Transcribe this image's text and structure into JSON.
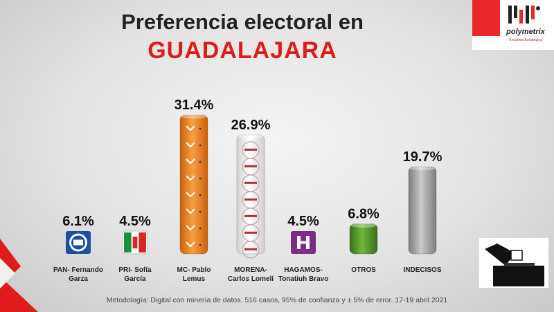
{
  "title": "Preferencia electoral en",
  "subtitle": "GUADALAJARA",
  "logo": {
    "brand": "polymetrix",
    "tagline": "Encuesta Estratégica"
  },
  "methodology": "Metodología: Digital con minería de datos. 516 casos, 95% de confianza y ± 5% de error. 17-19 abril 2021",
  "colors": {
    "accent_red": "#e01b1b",
    "mc_orange": "#f28a1c",
    "morena_white": "#f2f2f2",
    "hagamos_purple": "#7b2d86",
    "otros_green": "#4f8f26",
    "indecisos_gray": "#a7a7a7"
  },
  "chart_data": {
    "type": "bar",
    "categories": [
      [
        "PAN- Fernando",
        "Garza"
      ],
      [
        "PRI- Sofía",
        "García"
      ],
      [
        "MC- Pablo",
        "Lemus"
      ],
      [
        "MORENA-",
        "Carlos Lomelí"
      ],
      [
        "HAGAMOS-",
        "Tonatiuh Bravo"
      ],
      [
        "OTROS"
      ],
      [
        "INDECISOS"
      ]
    ],
    "values": [
      6.1,
      4.5,
      31.4,
      26.9,
      4.5,
      6.8,
      19.7
    ],
    "value_labels": [
      "6.1%",
      "4.5%",
      "31.4%",
      "26.9%",
      "4.5%",
      "6.8%",
      "19.7%"
    ],
    "styles": [
      "pan-logo",
      "pri-logo",
      "mc-orange-cylinder",
      "morena-white-cylinder",
      "hagamos-logo",
      "green-cylinder",
      "gray-cylinder"
    ],
    "ylim": [
      0,
      35
    ],
    "grid": false,
    "legend": "none"
  }
}
